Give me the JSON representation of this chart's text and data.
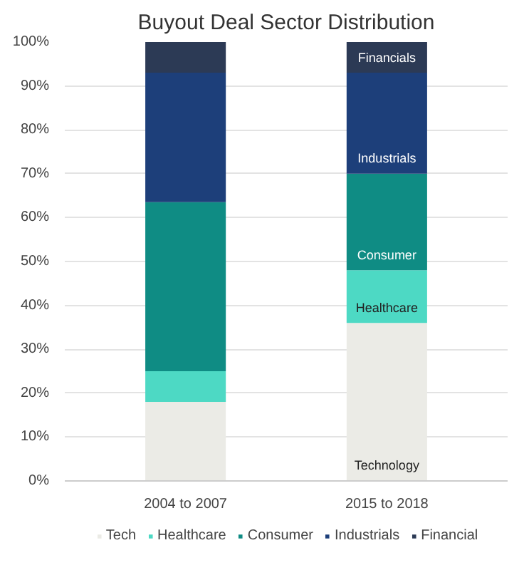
{
  "chart_data": {
    "type": "bar",
    "stacked": true,
    "title": "Buyout Deal Sector Distribution",
    "categories": [
      "2004 to 2007",
      "2015 to 2018"
    ],
    "series": [
      {
        "name": "Tech",
        "color": "#ebebe6",
        "values": [
          18,
          36
        ]
      },
      {
        "name": "Healthcare",
        "color": "#4dd9c4",
        "values": [
          7,
          12
        ]
      },
      {
        "name": "Consumer",
        "color": "#0f8c84",
        "values": [
          38.5,
          22
        ]
      },
      {
        "name": "Industrials",
        "color": "#1d3f7a",
        "values": [
          29.5,
          23
        ]
      },
      {
        "name": "Financial",
        "color": "#2c3a55",
        "values": [
          7,
          7
        ]
      }
    ],
    "ylim": [
      0,
      100
    ],
    "yticks": [
      {
        "value": 0,
        "label": "0%"
      },
      {
        "value": 10,
        "label": "10%"
      },
      {
        "value": 20,
        "label": "20%"
      },
      {
        "value": 30,
        "label": "30%"
      },
      {
        "value": 40,
        "label": "40%"
      },
      {
        "value": 50,
        "label": "50%"
      },
      {
        "value": 60,
        "label": "60%"
      },
      {
        "value": 70,
        "label": "70%"
      },
      {
        "value": 80,
        "label": "80%"
      },
      {
        "value": 90,
        "label": "90%"
      },
      {
        "value": 100,
        "label": "100%"
      }
    ],
    "grid": "y",
    "legend": "bottom",
    "annotations": [
      "Financials",
      "Industrials",
      "Consumer",
      "Healthcare",
      "Technology"
    ]
  }
}
